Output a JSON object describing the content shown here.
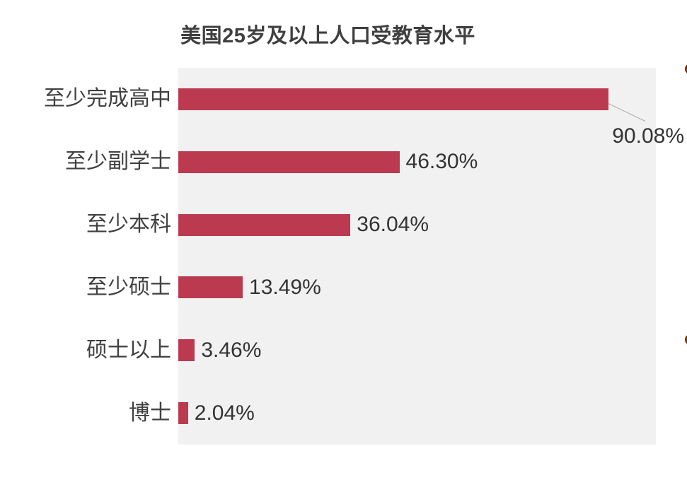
{
  "chart_data": {
    "type": "bar",
    "orientation": "horizontal",
    "title": "美国25岁及以上人口受教育水平",
    "categories": [
      "至少完成高中",
      "至少副学士",
      "至少本科",
      "至少硕士",
      "硕士以上",
      "博士"
    ],
    "values": [
      90.08,
      46.3,
      36.04,
      13.49,
      3.46,
      2.04
    ],
    "value_labels": [
      "90.08%",
      "46.30%",
      "36.04%",
      "13.49%",
      "3.46%",
      "2.04%"
    ],
    "xlabel": "",
    "ylabel": "",
    "xlim": [
      0,
      100
    ],
    "grid": false,
    "legend": false,
    "bar_color": "#bc3a50",
    "plot_background": "#f1f1f2",
    "title_color": "#3f3f3f",
    "category_label_color": "#404040",
    "value_label_color": "#333333",
    "leader_line_color": "#a6a6a6",
    "annotations": [
      {
        "text": "90.08%",
        "style": "callout-below-bar-with-leader-line"
      }
    ]
  },
  "decorations": {
    "clipped_bullets_right_edge": 2,
    "bullet_color": "#c65f1e"
  }
}
